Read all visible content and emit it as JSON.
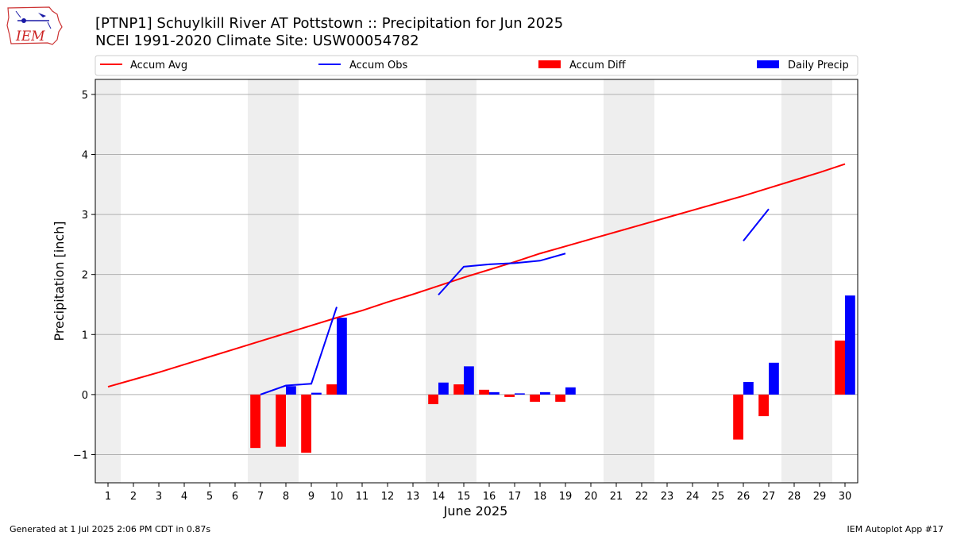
{
  "header": {
    "title_line1": "[PTNP1] Schuylkill River  AT Pottstown :: Precipitation for Jun 2025",
    "title_line2": "NCEI 1991-2020 Climate Site: USW00054782",
    "logo_text": "IEM"
  },
  "footer": {
    "left": "Generated at 1 Jul 2025 2:06 PM CDT in 0.87s",
    "right": "IEM Autoplot App #17"
  },
  "colors": {
    "accum_avg": "#ff0000",
    "accum_obs": "#0000ff",
    "accum_diff": "#ff0000",
    "daily_precip": "#0000ff",
    "weekend_band": "#eeeeee",
    "grid": "#b0b0b0"
  },
  "chart_data": {
    "type": "bar",
    "xlabel": "June 2025",
    "ylabel": "Precipitation [inch]",
    "xlim": [
      0.5,
      30.5
    ],
    "ylim": [
      -1.47,
      5.25
    ],
    "grid": "horizontal",
    "legend_placement": "top, above plot",
    "x": [
      1,
      2,
      3,
      4,
      5,
      6,
      7,
      8,
      9,
      10,
      11,
      12,
      13,
      14,
      15,
      16,
      17,
      18,
      19,
      20,
      21,
      22,
      23,
      24,
      25,
      26,
      27,
      28,
      29,
      30
    ],
    "x_tick_labels": [
      "1",
      "2",
      "3",
      "4",
      "5",
      "6",
      "7",
      "8",
      "9",
      "10",
      "11",
      "12",
      "13",
      "14",
      "15",
      "16",
      "17",
      "18",
      "19",
      "20",
      "21",
      "22",
      "23",
      "24",
      "25",
      "26",
      "27",
      "28",
      "29",
      "30"
    ],
    "y_ticks": [
      -1,
      0,
      1,
      2,
      3,
      4,
      5
    ],
    "y_tick_labels": [
      "−1",
      "0",
      "1",
      "2",
      "3",
      "4",
      "5"
    ],
    "weekend_bands": [
      [
        0.5,
        1.5
      ],
      [
        6.5,
        8.5
      ],
      [
        13.5,
        15.5
      ],
      [
        20.5,
        22.5
      ],
      [
        27.5,
        29.5
      ]
    ],
    "series": [
      {
        "name": "Accum Avg",
        "kind": "line",
        "color": "#ff0000",
        "values": [
          0.13,
          0.25,
          0.37,
          0.5,
          0.63,
          0.76,
          0.89,
          1.02,
          1.15,
          1.28,
          1.4,
          1.54,
          1.67,
          1.81,
          1.95,
          2.08,
          2.21,
          2.35,
          2.47,
          2.59,
          2.71,
          2.83,
          2.95,
          3.07,
          3.19,
          3.31,
          3.44,
          3.57,
          3.7,
          3.84
        ]
      },
      {
        "name": "Accum Obs",
        "kind": "line",
        "color": "#0000ff",
        "values": [
          null,
          null,
          null,
          null,
          null,
          null,
          0.0,
          0.15,
          0.18,
          1.46,
          null,
          null,
          null,
          1.66,
          2.13,
          2.17,
          2.19,
          2.23,
          2.35,
          null,
          null,
          null,
          null,
          null,
          null,
          2.56,
          3.09,
          null,
          null,
          null
        ]
      },
      {
        "name": "Accum Diff",
        "kind": "bar",
        "color": "#ff0000",
        "values": [
          null,
          null,
          null,
          null,
          null,
          null,
          -0.89,
          -0.87,
          -0.97,
          0.17,
          null,
          null,
          null,
          -0.16,
          0.17,
          0.08,
          -0.04,
          -0.12,
          -0.12,
          null,
          null,
          null,
          null,
          null,
          null,
          -0.75,
          -0.36,
          null,
          null,
          0.9
        ]
      },
      {
        "name": "Daily Precip",
        "kind": "bar",
        "color": "#0000ff",
        "values": [
          null,
          null,
          null,
          null,
          null,
          null,
          null,
          0.14,
          0.03,
          1.28,
          null,
          null,
          null,
          0.2,
          0.47,
          0.04,
          0.02,
          0.04,
          0.12,
          null,
          null,
          null,
          null,
          null,
          null,
          0.21,
          0.53,
          null,
          null,
          1.65
        ]
      }
    ]
  }
}
